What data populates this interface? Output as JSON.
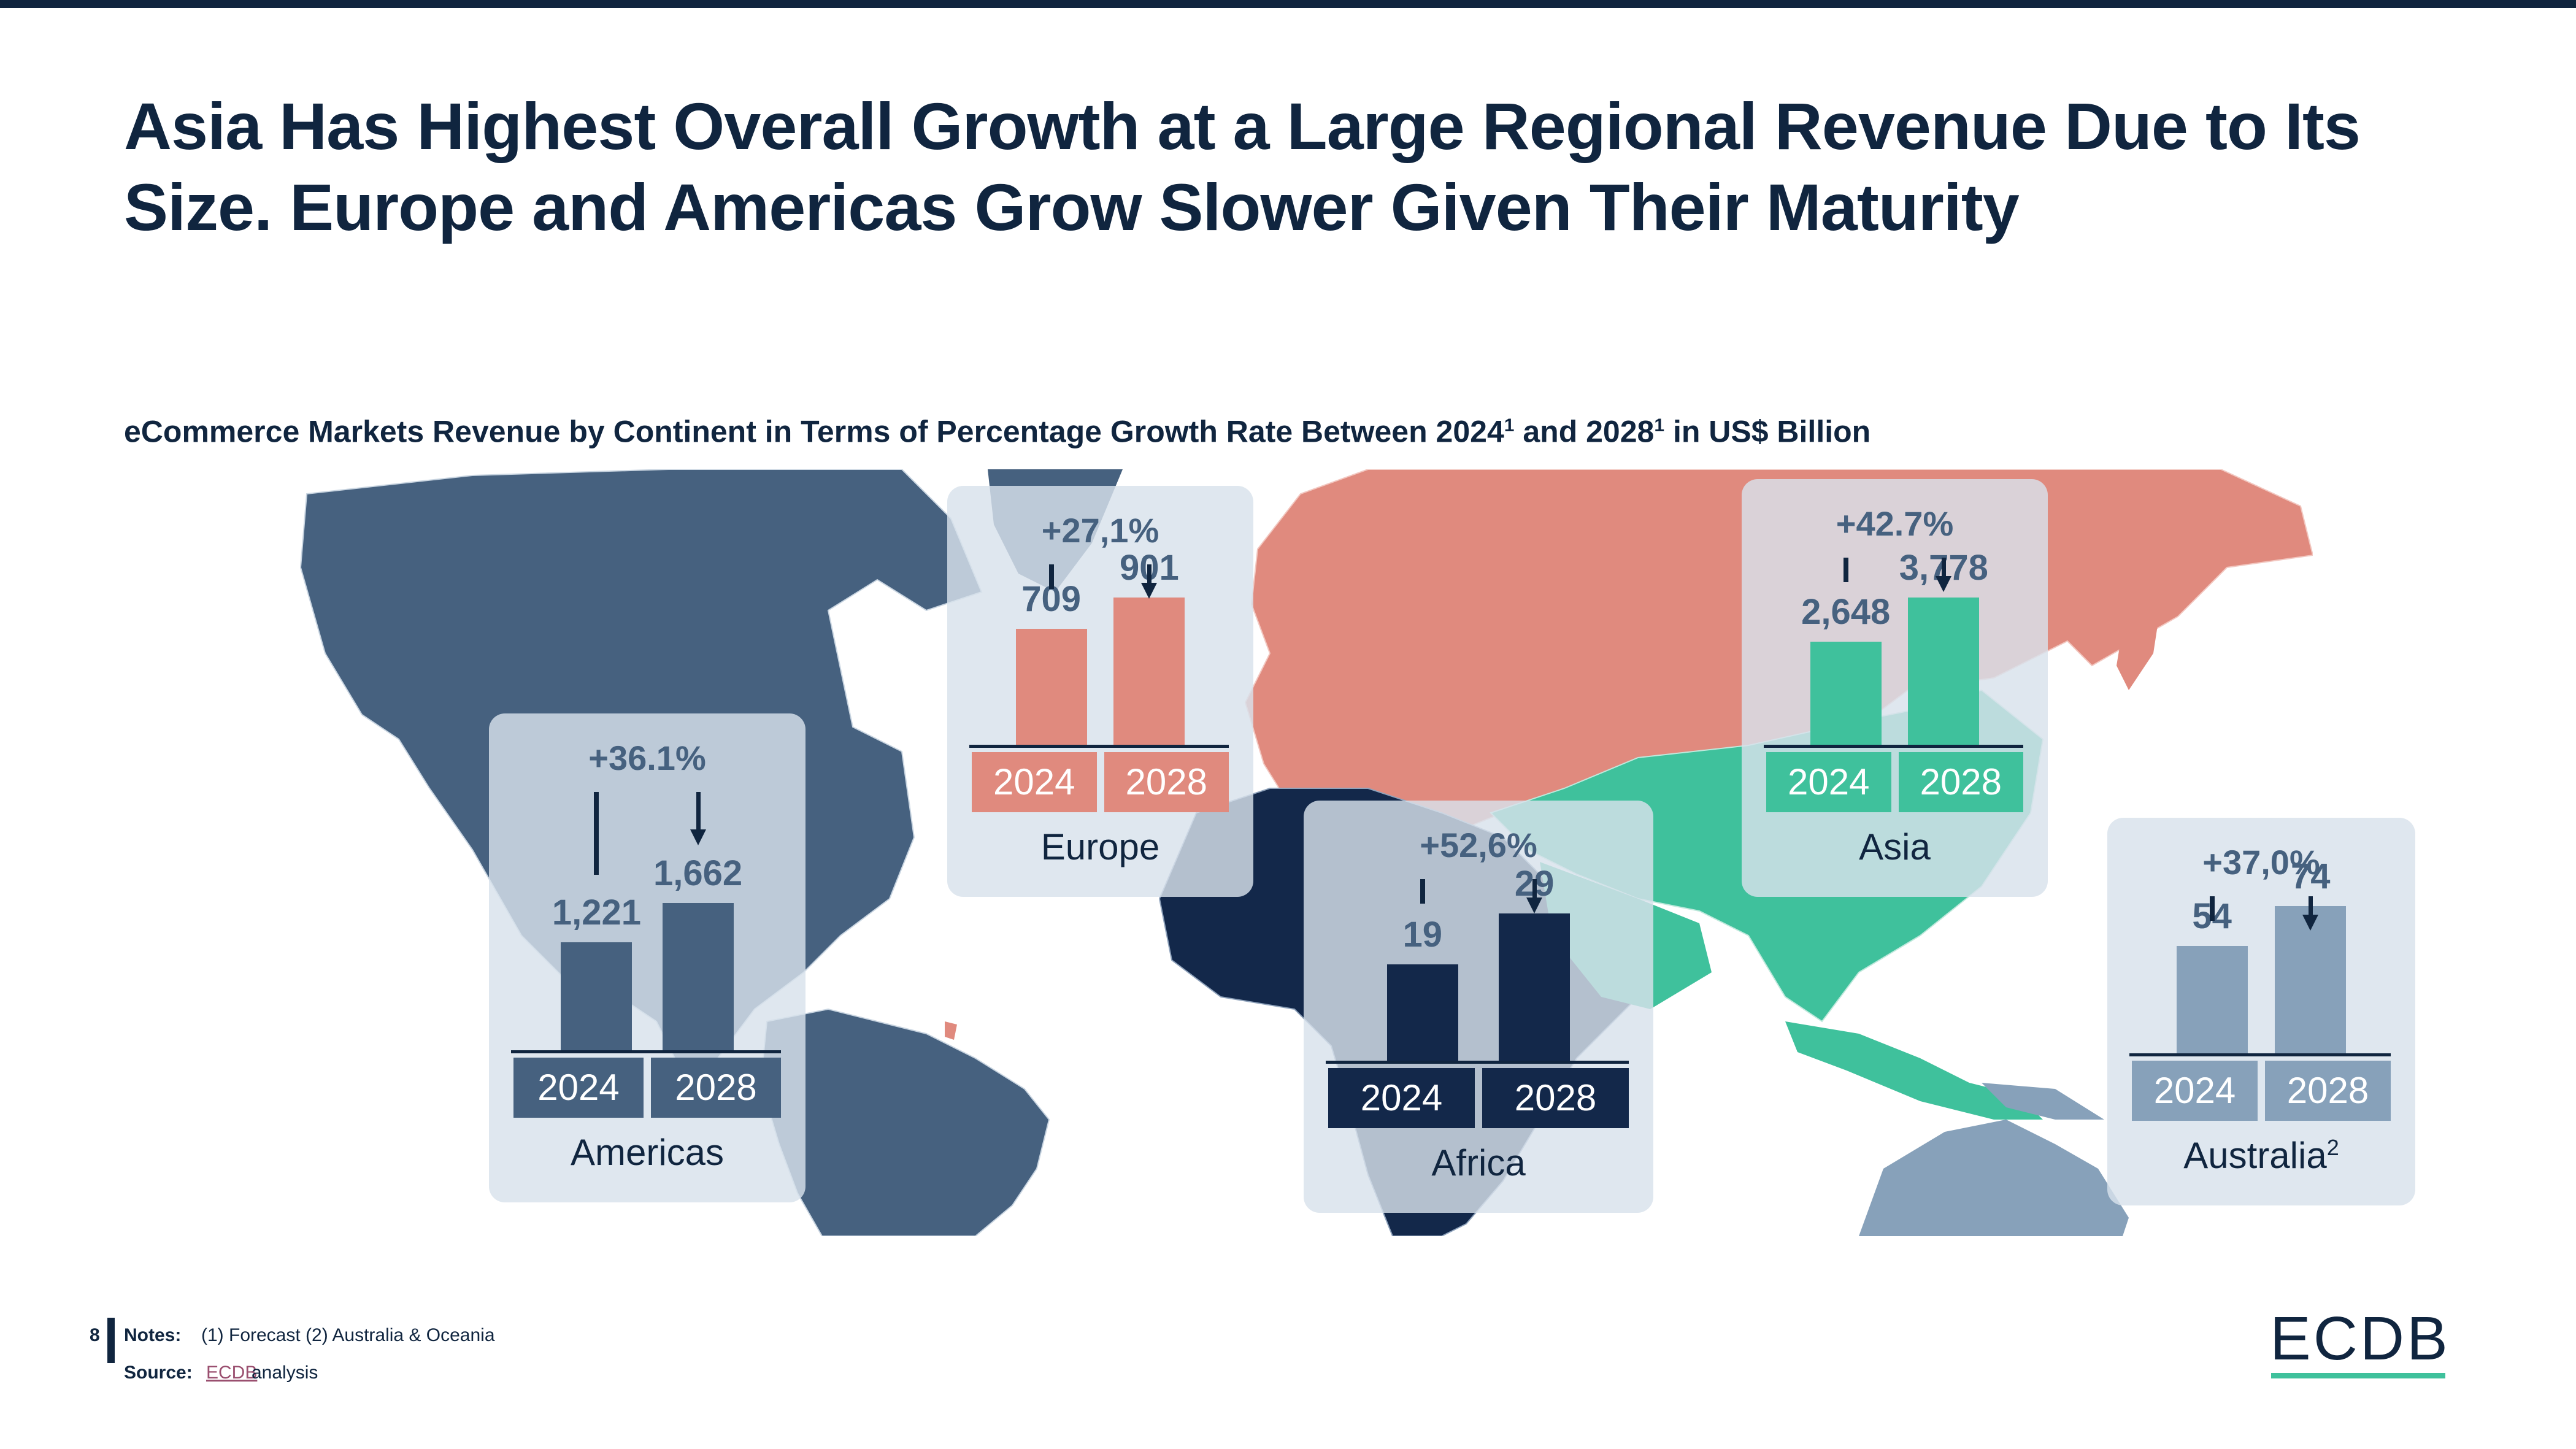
{
  "slide": {
    "title": "Asia Has Highest Overall Growth at a Large Regional Revenue Due to Its Size. Europe and Americas Grow Slower Given Their Maturity",
    "subtitle_parts": [
      "eCommerce Markets Revenue by Continent in Terms of Percentage Growth Rate Between 2024",
      "1",
      " and 2028",
      "1",
      " in US$ Billion"
    ],
    "page_number": "8",
    "notes_label": "Notes:",
    "notes_text": "(1) Forecast (2) Australia & Oceania",
    "source_label": "Source:",
    "source_link": "ECDB",
    "source_text": "analysis",
    "logo_text": "ECDB"
  },
  "colors": {
    "navy": "#10253f",
    "americas": "#46617f",
    "europe": "#e08a7e",
    "africa": "#13284a",
    "asia": "#3fc19c",
    "australia": "#87a1ba",
    "panel_bg": "#d8e2eb",
    "value_text": "#46617f",
    "link": "#9a4f6f"
  },
  "chart_data": {
    "type": "bar",
    "title": "eCommerce Markets Revenue by Continent in Terms of Percentage Growth Rate Between 2024¹ and 2028¹ in US$ Billion",
    "unit": "US$ Billion",
    "categories": [
      "2024",
      "2028"
    ],
    "regions": [
      {
        "name": "Americas",
        "superscript": "",
        "growth": "+36.1%",
        "labels": [
          "1,221",
          "1,662"
        ],
        "values": [
          1221,
          1662
        ],
        "color": "#46617f"
      },
      {
        "name": "Europe",
        "superscript": "",
        "growth": "+27,1%",
        "labels": [
          "709",
          "901"
        ],
        "values": [
          709,
          901
        ],
        "color": "#e08a7e"
      },
      {
        "name": "Africa",
        "superscript": "",
        "growth": "+52,6%",
        "labels": [
          "19",
          "29"
        ],
        "values": [
          19,
          29
        ],
        "color": "#13284a"
      },
      {
        "name": "Asia",
        "superscript": "",
        "growth": "+42.7%",
        "labels": [
          "2,648",
          "3,778"
        ],
        "values": [
          2648,
          3778
        ],
        "color": "#3fc19c"
      },
      {
        "name": "Australia",
        "superscript": "2",
        "growth": "+37,0%",
        "labels": [
          "54",
          "74"
        ],
        "values": [
          54,
          74
        ],
        "color": "#87a1ba"
      }
    ]
  }
}
